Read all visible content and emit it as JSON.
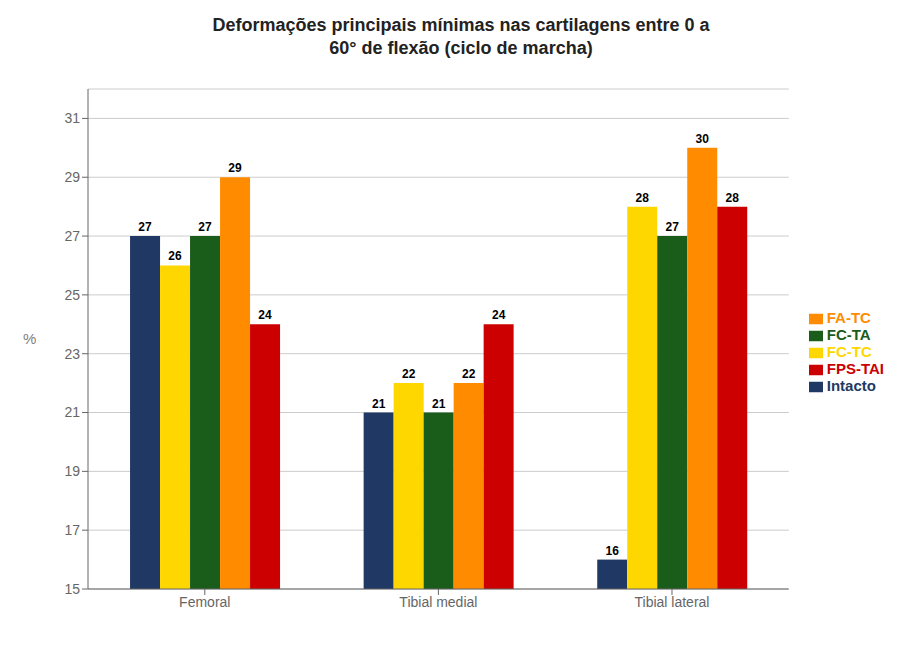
{
  "chart_data": {
    "type": "bar",
    "title": "Deformações principais mínimas nas cartilagens entre 0 a\n60° de flexão (ciclo de marcha)",
    "ylabel": "%",
    "categories": [
      "Femoral",
      "Tibial medial",
      "Tibial lateral"
    ],
    "series": [
      {
        "name": "Intacto",
        "color": "#1F3864",
        "values": [
          27,
          21,
          16
        ]
      },
      {
        "name": "FC-TC",
        "color": "#FFD700",
        "values": [
          26,
          22,
          28
        ]
      },
      {
        "name": "FC-TA",
        "color": "#1A5C1A",
        "values": [
          27,
          21,
          27
        ]
      },
      {
        "name": "FA-TC",
        "color": "#FF8C00",
        "values": [
          29,
          22,
          30
        ]
      },
      {
        "name": "FPS-TAI",
        "color": "#CC0000",
        "values": [
          24,
          24,
          28
        ]
      }
    ],
    "ylim": [
      15,
      32
    ],
    "yticks": [
      15,
      17,
      19,
      21,
      23,
      25,
      27,
      29,
      31
    ],
    "grid": true,
    "legend": "right",
    "data_labels": true
  }
}
